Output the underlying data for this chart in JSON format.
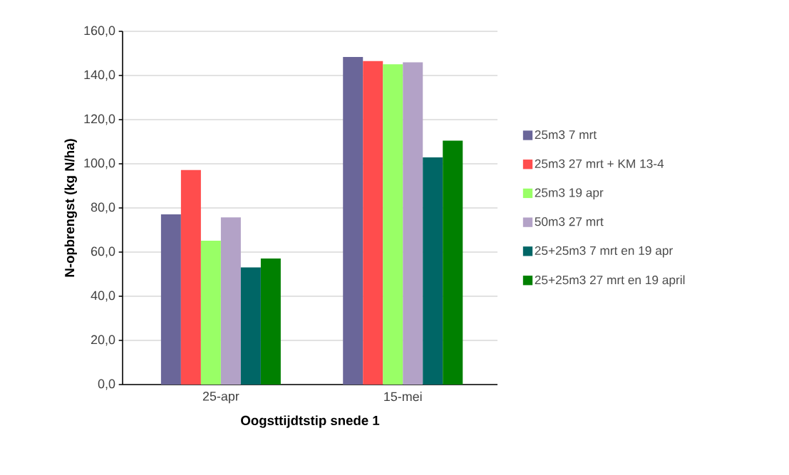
{
  "chart_data": {
    "type": "bar",
    "xlabel": "Oogsttijdtstip snede 1",
    "ylabel": "N-opbrengst (kg N/ha)",
    "categories": [
      "25-apr",
      "15-mei"
    ],
    "series": [
      {
        "name": "25m3  7 mrt",
        "color": "#6a6699",
        "values": [
          77.1,
          148.4
        ]
      },
      {
        "name": "25m3  27 mrt + KM 13-4",
        "color": "#ff4d4d",
        "values": [
          97.2,
          146.5
        ]
      },
      {
        "name": "25m3  19 apr",
        "color": "#99ff66",
        "values": [
          65.2,
          145.1
        ]
      },
      {
        "name": "50m3  27 mrt",
        "color": "#b3a2c7",
        "values": [
          75.7,
          146.0
        ]
      },
      {
        "name": "25+25m3 7 mrt en 19 apr",
        "color": "#006666",
        "values": [
          53.1,
          102.9
        ]
      },
      {
        "name": "25+25m3  27 mrt en 19 april",
        "color": "#008000",
        "values": [
          57.1,
          110.5
        ]
      }
    ],
    "ylim": [
      0,
      160
    ],
    "yticks": [
      {
        "value": 0,
        "label": "0,0"
      },
      {
        "value": 20,
        "label": "20,0"
      },
      {
        "value": 40,
        "label": "40,0"
      },
      {
        "value": 60,
        "label": "60,0"
      },
      {
        "value": 80,
        "label": "80,0"
      },
      {
        "value": 100,
        "label": "100,0"
      },
      {
        "value": 120,
        "label": "120,0"
      },
      {
        "value": 140,
        "label": "140,0"
      },
      {
        "value": 160,
        "label": "160,0"
      }
    ],
    "grid": "y",
    "legend": "right"
  }
}
